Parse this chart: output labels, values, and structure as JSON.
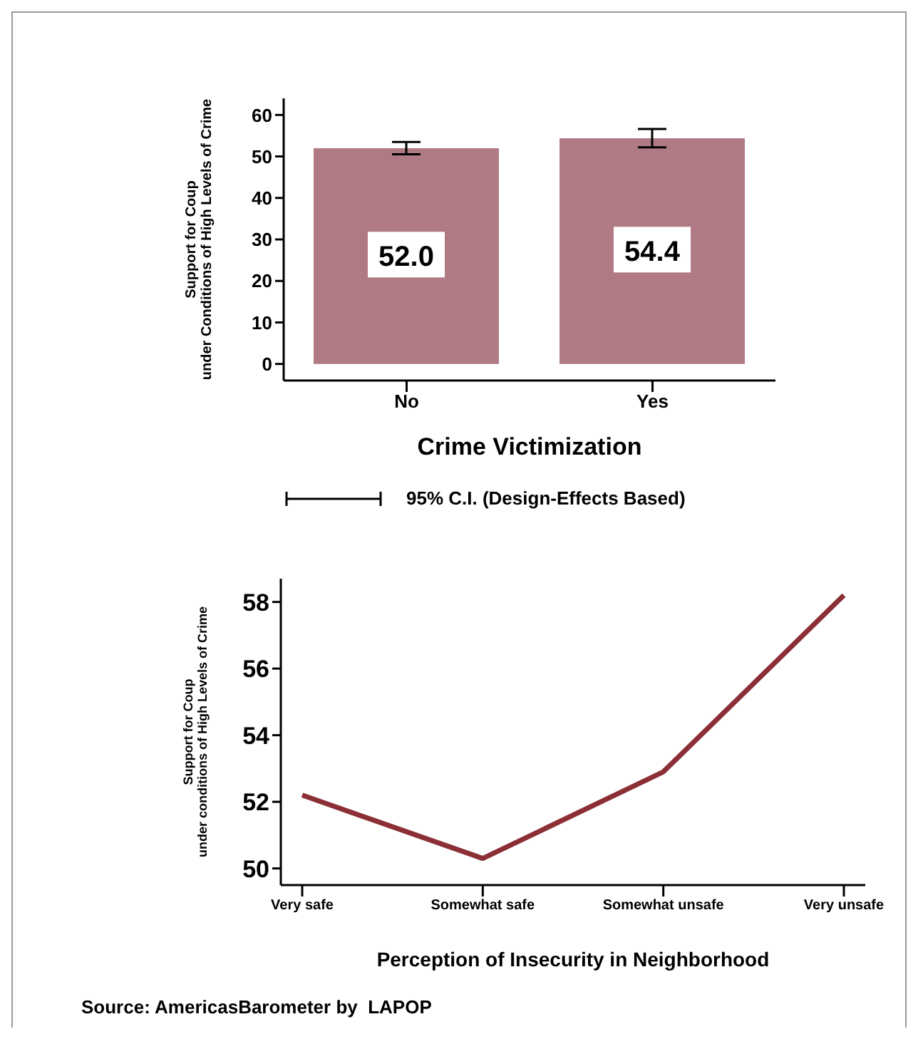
{
  "chart_data": [
    {
      "type": "bar",
      "xlabel": "Crime Victimization",
      "ylabel": "Support for Coup\nunder Conditions of High Levels of Crime",
      "categories": [
        "No",
        "Yes"
      ],
      "values": [
        52.0,
        54.4
      ],
      "errors": [
        1.5,
        2.2
      ],
      "value_labels": [
        "52.0",
        "54.4"
      ],
      "color": "#b07a85",
      "ylim": [
        -4,
        64
      ],
      "yticks": [
        0,
        10,
        20,
        30,
        40,
        50,
        60
      ],
      "annotations": [
        "95% C.I. (Design-Effects Based)"
      ]
    },
    {
      "type": "line",
      "xlabel": "Perception of Insecurity in Neighborhood",
      "ylabel": "Support for Coup\nunder conditions of High Levels of Crime",
      "categories": [
        "Very safe",
        "Somewhat safe",
        "Somewhat unsafe",
        "Very unsafe"
      ],
      "series": [
        {
          "color": "#8b2e35",
          "values": [
            52.2,
            50.3,
            52.9,
            58.2
          ]
        }
      ],
      "ylim": [
        49.5,
        58.7
      ],
      "yticks": [
        50,
        52,
        54,
        56,
        58
      ],
      "annotations": [
        "Source: AmericasBarometer by  LAPOP"
      ]
    }
  ]
}
